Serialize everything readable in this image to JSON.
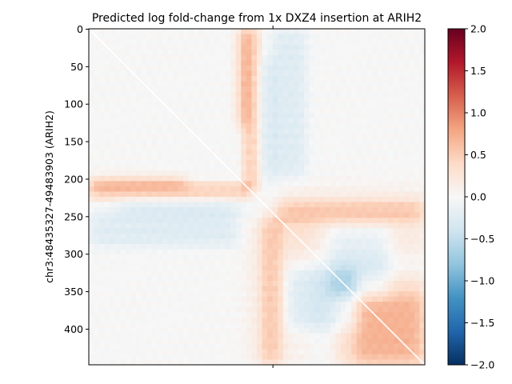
{
  "chart_data": {
    "type": "heatmap",
    "title": "Predicted log fold-change from 1x DXZ4 insertion at ARIH2",
    "ylabel": "chr3:48435327-49483903 (ARIH2)",
    "xlabel": "",
    "matrix_size": 448,
    "yticks": [
      0,
      50,
      100,
      150,
      200,
      250,
      300,
      350,
      400
    ],
    "xtick_positions": [
      245
    ],
    "colorbar": {
      "colormap": "RdBu_r",
      "range": [
        -2.0,
        2.0
      ],
      "ticks": [
        -2.0,
        -1.5,
        -1.0,
        -0.5,
        0.0,
        0.5,
        1.0,
        1.5,
        2.0
      ],
      "tick_labels": [
        "−2.0",
        "−1.5",
        "−1.0",
        "−0.5",
        "0.0",
        "0.5",
        "1.0",
        "1.5",
        "2.0"
      ]
    },
    "diagonal_line_color": "#ffffff",
    "approx_features": [
      {
        "region": "rows 205-230, columns 0-215 (insertion row band)",
        "value": 0.45
      },
      {
        "region": "columns 205-230, rows 0-215 (insertion column band)",
        "value": 0.45
      },
      {
        "region": "rows 230-260, columns 250-448",
        "value": 0.35
      },
      {
        "region": "columns 230-260, rows 250-448",
        "value": 0.35
      },
      {
        "region": "rows 245-290, columns 0-200",
        "value": -0.25
      },
      {
        "region": "columns 245-290, rows 0-200",
        "value": -0.25
      },
      {
        "region": "block near rows 360-448, columns 330-448",
        "value": 0.35
      },
      {
        "region": "block near rows 270-360, columns 320-400",
        "value": -0.35
      }
    ]
  }
}
